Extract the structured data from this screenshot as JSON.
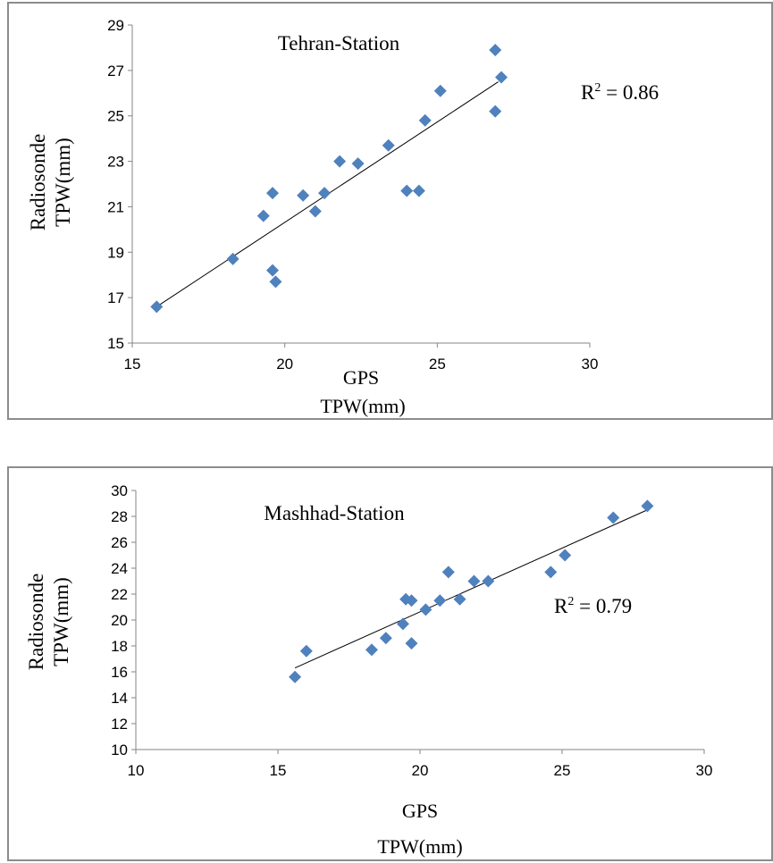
{
  "chart_data": [
    {
      "type": "scatter",
      "title": "Tehran-Station",
      "xlabel_lines": [
        "GPS",
        "TPW(mm)"
      ],
      "ylabel_lines": [
        "Radiosonde",
        "TPW(mm)"
      ],
      "annotation": {
        "prefix": "R",
        "sup": "2",
        "text": " = 0.86"
      },
      "xlim": [
        15,
        30
      ],
      "ylim": [
        15,
        29
      ],
      "xticks": [
        15,
        20,
        25,
        30
      ],
      "yticks": [
        15,
        17,
        19,
        21,
        23,
        25,
        27,
        29
      ],
      "marker_color": "#4f81bd",
      "points": [
        [
          15.8,
          16.6
        ],
        [
          18.3,
          18.7
        ],
        [
          19.6,
          18.2
        ],
        [
          19.7,
          17.7
        ],
        [
          19.3,
          20.6
        ],
        [
          19.6,
          21.6
        ],
        [
          20.6,
          21.5
        ],
        [
          21.0,
          20.8
        ],
        [
          21.3,
          21.6
        ],
        [
          21.8,
          23.0
        ],
        [
          22.4,
          22.9
        ],
        [
          23.4,
          23.7
        ],
        [
          24.0,
          21.7
        ],
        [
          24.4,
          21.7
        ],
        [
          24.6,
          24.8
        ],
        [
          25.1,
          26.1
        ],
        [
          26.9,
          27.9
        ],
        [
          27.1,
          26.7
        ],
        [
          26.9,
          25.2
        ]
      ],
      "trendline": {
        "x": [
          15.8,
          27.0
        ],
        "y": [
          16.6,
          26.5
        ]
      }
    },
    {
      "type": "scatter",
      "title": "Mashhad-Station",
      "xlabel_lines": [
        "GPS",
        "TPW(mm)"
      ],
      "ylabel_lines": [
        "Radiosonde",
        "TPW(mm)"
      ],
      "annotation": {
        "prefix": "R",
        "sup": "2",
        "text": " = 0.79"
      },
      "xlim": [
        10,
        30
      ],
      "ylim": [
        10,
        30
      ],
      "xticks": [
        10,
        15,
        20,
        25,
        30
      ],
      "yticks": [
        10,
        12,
        14,
        16,
        18,
        20,
        22,
        24,
        26,
        28,
        30
      ],
      "marker_color": "#4f81bd",
      "points": [
        [
          15.6,
          15.6
        ],
        [
          16.0,
          17.6
        ],
        [
          18.3,
          17.7
        ],
        [
          18.8,
          18.6
        ],
        [
          19.4,
          19.7
        ],
        [
          19.7,
          18.2
        ],
        [
          19.5,
          21.6
        ],
        [
          19.7,
          21.5
        ],
        [
          20.2,
          20.8
        ],
        [
          20.7,
          21.5
        ],
        [
          21.0,
          23.7
        ],
        [
          21.4,
          21.6
        ],
        [
          21.9,
          23.0
        ],
        [
          22.4,
          23.0
        ],
        [
          24.6,
          23.7
        ],
        [
          25.1,
          25.0
        ],
        [
          26.8,
          27.9
        ],
        [
          28.0,
          28.8
        ]
      ],
      "trendline": {
        "x": [
          15.6,
          28.0
        ],
        "y": [
          16.3,
          28.5
        ]
      }
    }
  ]
}
